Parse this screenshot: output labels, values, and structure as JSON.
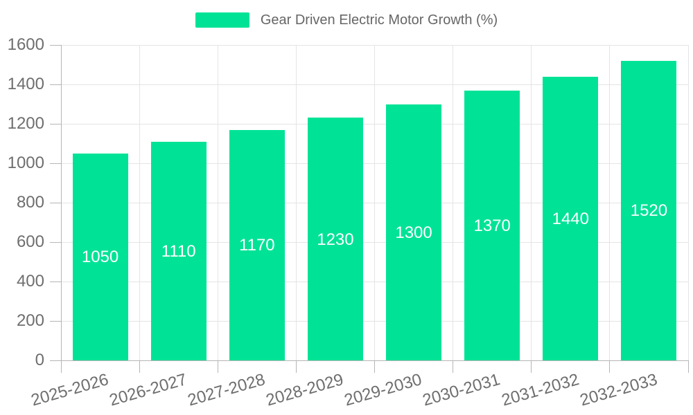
{
  "chart_data": {
    "type": "bar",
    "title": "Gear Driven Electric Motor Growth (%)",
    "categories": [
      "2025-2026",
      "2026-2027",
      "2027-2028",
      "2028-2029",
      "2029-2030",
      "2030-2031",
      "2031-2032",
      "2032-2033"
    ],
    "series": [
      {
        "name": "Gear Driven Electric Motor Growth (%)",
        "values": [
          1050,
          1110,
          1170,
          1230,
          1300,
          1370,
          1440,
          1520
        ]
      }
    ],
    "data_labels": [
      "1050",
      "1110",
      "1170",
      "1230",
      "1300",
      "1370",
      "1440",
      "1520"
    ],
    "xlabel": "",
    "ylabel": "",
    "ylim": [
      0,
      1600
    ],
    "ytick_step": 200,
    "ytick_labels": [
      "0",
      "200",
      "400",
      "600",
      "800",
      "1000",
      "1200",
      "1400",
      "1600"
    ],
    "grid": "horizontal and vertical category boundaries",
    "legend_position": "top-center",
    "colors": {
      "bar": "#00E396",
      "data_label": "#ffffff",
      "axis_label": "#6e6e6e",
      "legend_text": "#666666",
      "grid_line": "#e4e4e4",
      "axis_line": "#b5b5b5",
      "background": "#ffffff"
    }
  }
}
